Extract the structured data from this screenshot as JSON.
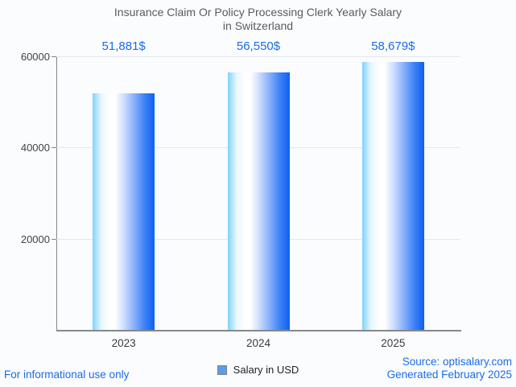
{
  "title": {
    "line1": "Insurance Claim Or Policy Processing Clerk Yearly Salary",
    "line2": "in Switzerland"
  },
  "chart_data": {
    "type": "bar",
    "title": "Insurance Claim Or Policy Processing Clerk Yearly Salary in Switzerland",
    "categories": [
      "2023",
      "2024",
      "2025"
    ],
    "values": [
      51881,
      56550,
      58679
    ],
    "value_labels": [
      "51,881$",
      "56,550$",
      "58,679$"
    ],
    "series_name": "Salary in USD",
    "xlabel": "",
    "ylabel": "",
    "ylim": [
      0,
      60000
    ],
    "yticks": [
      20000,
      40000,
      60000
    ],
    "ytick_labels": [
      "20000",
      "40000",
      "60000"
    ],
    "grid": true,
    "legend_position": "bottom",
    "colors": {
      "annotation_text": "#1a6ce8",
      "bar_gradient": [
        "#7ed3fb",
        "#ffffff",
        "#1061ef"
      ],
      "legend_square": "#5d9cec",
      "gridline": "#e4e7eb",
      "axis": "#7f868c",
      "title_text": "#5a5b5e",
      "background": "#fbfcfe"
    }
  },
  "legend": {
    "label": "Salary in USD"
  },
  "footer": {
    "left": "For informational use only",
    "source": "Source: optisalary.com",
    "generated": "Generated February 2025"
  }
}
